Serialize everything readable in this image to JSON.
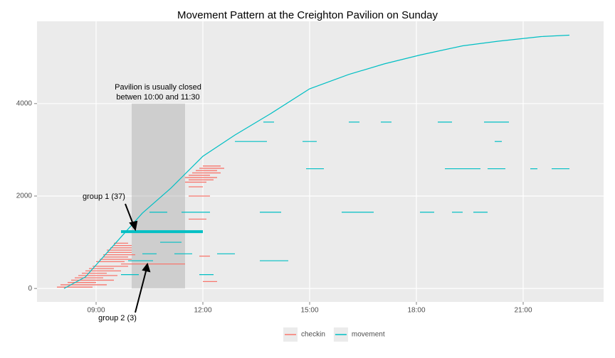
{
  "chart_data": {
    "type": "segment",
    "title": "Movement Pattern at the Creighton Pavilion on Sunday",
    "xlim": [
      7.34,
      23.26
    ],
    "ylim": [
      -290,
      5780
    ],
    "xticks": [
      {
        "value": 9,
        "label": "09:00"
      },
      {
        "value": 12,
        "label": "12:00"
      },
      {
        "value": 15,
        "label": "15:00"
      },
      {
        "value": 18,
        "label": "18:00"
      },
      {
        "value": 21,
        "label": "21:00"
      }
    ],
    "yticks": [
      0,
      2000,
      4000
    ],
    "grid": true,
    "series": [
      {
        "name": "checkin",
        "color": "#F8766D",
        "values": [
          30,
          80,
          130,
          180,
          230,
          280,
          330,
          380,
          430,
          480,
          530,
          580,
          630,
          680,
          730,
          780,
          830,
          880,
          930,
          980,
          2300,
          2350,
          2400,
          2450,
          2500,
          2550,
          2600,
          2650,
          2200,
          150,
          700,
          1500,
          2000
        ],
        "start": [
          7.9,
          8.0,
          8.2,
          8.3,
          8.4,
          8.5,
          8.6,
          8.7,
          8.8,
          8.9,
          9.7,
          9.0,
          9.1,
          9.2,
          9.2,
          9.3,
          9.3,
          9.4,
          9.5,
          9.5,
          11.5,
          11.6,
          11.5,
          11.6,
          11.7,
          11.8,
          11.9,
          12.0,
          11.6,
          12.0,
          11.9,
          11.6,
          11.6
        ],
        "end": [
          8.9,
          9.3,
          9.0,
          9.5,
          9.2,
          9.6,
          9.3,
          9.7,
          9.5,
          9.9,
          11.5,
          9.8,
          10.0,
          9.9,
          10.1,
          10.0,
          10.0,
          10.0,
          10.0,
          9.9,
          12.1,
          12.3,
          12.4,
          12.2,
          12.5,
          12.4,
          12.6,
          12.5,
          12.0,
          12.4,
          12.2,
          12.1,
          12.2
        ]
      },
      {
        "name": "movement",
        "color": "#00BFC4",
        "values": [
          3600,
          3600,
          3600,
          3600,
          3600,
          3180,
          3180,
          3180,
          2590,
          2590,
          2590,
          2590,
          2590,
          1650,
          1650,
          1650,
          1650,
          1650,
          1650,
          1650,
          750,
          750,
          750,
          600,
          600,
          300,
          300,
          1000
        ],
        "start": [
          13.7,
          16.1,
          17.0,
          18.6,
          19.9,
          12.9,
          14.8,
          20.2,
          14.9,
          18.8,
          20.0,
          21.2,
          21.8,
          10.5,
          11.4,
          13.6,
          15.9,
          18.1,
          19.0,
          19.6,
          10.3,
          11.2,
          12.4,
          13.6,
          9.9,
          9.7,
          11.9,
          10.8
        ],
        "end": [
          14.0,
          16.4,
          17.3,
          19.0,
          20.6,
          13.8,
          15.2,
          20.4,
          15.4,
          19.8,
          20.5,
          21.4,
          22.3,
          11.0,
          12.2,
          14.2,
          16.8,
          18.5,
          19.3,
          20.0,
          10.7,
          11.7,
          12.9,
          14.4,
          10.6,
          10.2,
          12.3,
          11.4
        ]
      }
    ],
    "curve": {
      "x": [
        8.1,
        8.7,
        9.5,
        10.3,
        11.1,
        12.0,
        12.9,
        13.9,
        15.0,
        16.1,
        17.1,
        18.1,
        19.3,
        20.3,
        21.5,
        22.3
      ],
      "values": [
        0,
        250,
        940,
        1630,
        2170,
        2860,
        3320,
        3780,
        4320,
        4630,
        4860,
        5050,
        5250,
        5350,
        5450,
        5480
      ]
    },
    "highlight": {
      "values": [
        1230
      ],
      "start": [
        9.7
      ],
      "end": [
        12.0
      ]
    },
    "closed_region": {
      "x": [
        10,
        11.5
      ],
      "y": [
        0,
        4000
      ]
    },
    "annotations": {
      "closed": [
        "Pavilion is usually closed",
        "betwen 10:00 and 11:30"
      ],
      "group1": "group 1 (37)",
      "group2": "group 2 (3)"
    }
  }
}
